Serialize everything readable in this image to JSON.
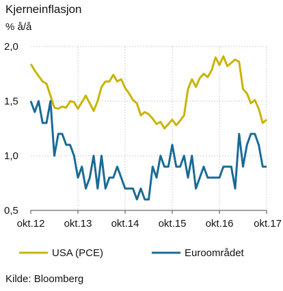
{
  "chart_data": {
    "type": "line",
    "title": "Kjerneinflasjon",
    "ylabel": "% å/å",
    "ylim": [
      0.5,
      2.0
    ],
    "yticks": [
      0.5,
      1.0,
      1.5,
      2.0
    ],
    "ytick_labels": [
      "0,5",
      "1,0",
      "1,5",
      "2,0"
    ],
    "xticks": [
      "2012-10",
      "2013-10",
      "2014-10",
      "2015-10",
      "2016-10",
      "2017-10"
    ],
    "xtick_labels": [
      "okt.12",
      "okt.13",
      "okt.14",
      "okt.15",
      "okt.16",
      "okt.17"
    ],
    "grid": true,
    "legend_position": "bottom",
    "series": [
      {
        "name": "USA (PCE)",
        "color": "#c8b400",
        "x": [
          "2012-10",
          "2012-11",
          "2012-12",
          "2013-01",
          "2013-02",
          "2013-03",
          "2013-04",
          "2013-05",
          "2013-06",
          "2013-07",
          "2013-08",
          "2013-09",
          "2013-10",
          "2013-11",
          "2013-12",
          "2014-01",
          "2014-02",
          "2014-03",
          "2014-04",
          "2014-05",
          "2014-06",
          "2014-07",
          "2014-08",
          "2014-09",
          "2014-10",
          "2014-11",
          "2014-12",
          "2015-01",
          "2015-02",
          "2015-03",
          "2015-04",
          "2015-05",
          "2015-06",
          "2015-07",
          "2015-08",
          "2015-09",
          "2015-10",
          "2015-11",
          "2015-12",
          "2016-01",
          "2016-02",
          "2016-03",
          "2016-04",
          "2016-05",
          "2016-06",
          "2016-07",
          "2016-08",
          "2016-09",
          "2016-10",
          "2016-11",
          "2016-12",
          "2017-01",
          "2017-02",
          "2017-03",
          "2017-04",
          "2017-05",
          "2017-06",
          "2017-07",
          "2017-08",
          "2017-09",
          "2017-10"
        ],
        "values": [
          1.84,
          1.78,
          1.73,
          1.68,
          1.66,
          1.55,
          1.44,
          1.43,
          1.45,
          1.44,
          1.5,
          1.49,
          1.43,
          1.49,
          1.55,
          1.48,
          1.41,
          1.5,
          1.63,
          1.68,
          1.68,
          1.74,
          1.68,
          1.7,
          1.62,
          1.57,
          1.51,
          1.48,
          1.37,
          1.4,
          1.38,
          1.34,
          1.29,
          1.31,
          1.25,
          1.29,
          1.33,
          1.28,
          1.32,
          1.37,
          1.61,
          1.7,
          1.63,
          1.71,
          1.75,
          1.72,
          1.78,
          1.9,
          1.83,
          1.91,
          1.82,
          1.85,
          1.88,
          1.86,
          1.61,
          1.57,
          1.48,
          1.51,
          1.43,
          1.3,
          1.33
        ]
      },
      {
        "name": "Euroområdet",
        "color": "#1a6a96",
        "x": [
          "2012-10",
          "2012-11",
          "2012-12",
          "2013-01",
          "2013-02",
          "2013-03",
          "2013-04",
          "2013-05",
          "2013-06",
          "2013-07",
          "2013-08",
          "2013-09",
          "2013-10",
          "2013-11",
          "2013-12",
          "2014-01",
          "2014-02",
          "2014-03",
          "2014-04",
          "2014-05",
          "2014-06",
          "2014-07",
          "2014-08",
          "2014-09",
          "2014-10",
          "2014-11",
          "2014-12",
          "2015-01",
          "2015-02",
          "2015-03",
          "2015-04",
          "2015-05",
          "2015-06",
          "2015-07",
          "2015-08",
          "2015-09",
          "2015-10",
          "2015-11",
          "2015-12",
          "2016-01",
          "2016-02",
          "2016-03",
          "2016-04",
          "2016-05",
          "2016-06",
          "2016-07",
          "2016-08",
          "2016-09",
          "2016-10",
          "2016-11",
          "2016-12",
          "2017-01",
          "2017-02",
          "2017-03",
          "2017-04",
          "2017-05",
          "2017-06",
          "2017-07",
          "2017-08",
          "2017-09",
          "2017-10"
        ],
        "values": [
          1.5,
          1.4,
          1.5,
          1.3,
          1.3,
          1.5,
          1.0,
          1.2,
          1.2,
          1.1,
          1.1,
          1.0,
          0.8,
          0.9,
          0.7,
          0.8,
          1.0,
          0.7,
          1.0,
          0.7,
          0.8,
          0.8,
          0.9,
          0.8,
          0.7,
          0.7,
          0.7,
          0.6,
          0.7,
          0.6,
          0.6,
          0.9,
          0.8,
          1.0,
          0.9,
          0.9,
          1.1,
          0.9,
          0.9,
          1.0,
          0.8,
          1.0,
          0.7,
          0.8,
          0.9,
          0.8,
          0.8,
          0.8,
          0.8,
          0.9,
          0.9,
          0.9,
          0.7,
          1.2,
          0.9,
          1.1,
          1.2,
          1.2,
          1.1,
          0.9,
          0.9
        ]
      }
    ]
  },
  "source": "Kilde: Bloomberg"
}
